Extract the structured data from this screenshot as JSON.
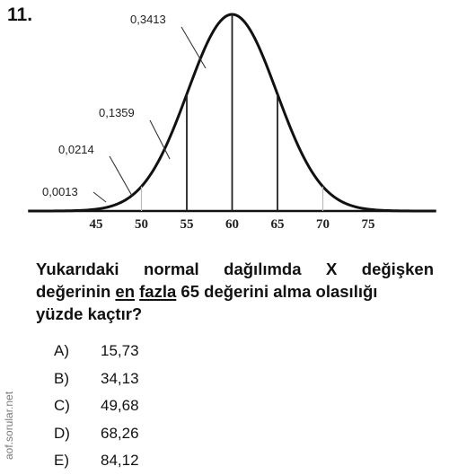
{
  "question_number": "11.",
  "chart_data": {
    "type": "area",
    "x_ticks": [
      "45",
      "50",
      "55",
      "60",
      "65",
      "70",
      "75"
    ],
    "x_values": [
      45,
      50,
      55,
      60,
      65,
      70,
      75
    ],
    "region_probabilities": [
      {
        "label": "0,0013",
        "from": null,
        "to": 45
      },
      {
        "label": "0,0214",
        "from": 45,
        "to": 50
      },
      {
        "label": "0,1359",
        "from": 50,
        "to": 55
      },
      {
        "label": "0,3413",
        "from": 55,
        "to": 60
      }
    ],
    "mean": 60,
    "std_dev": 5
  },
  "question": {
    "line1": "Yukarıdaki normal dağılımda X değişken",
    "line2_part1": "değerinin ",
    "underline1": "en",
    "line2_space": " ",
    "underline2": "fazla",
    "line2_part2": " 65 değerini alma olasılığı",
    "line3": "yüzde kaçtır?"
  },
  "options": [
    {
      "letter": "A)",
      "value": "15,73"
    },
    {
      "letter": "B)",
      "value": "34,13"
    },
    {
      "letter": "C)",
      "value": "49,68"
    },
    {
      "letter": "D)",
      "value": "68,26"
    },
    {
      "letter": "E)",
      "value": "84,12"
    }
  ],
  "watermark": "aof.sorular.net"
}
